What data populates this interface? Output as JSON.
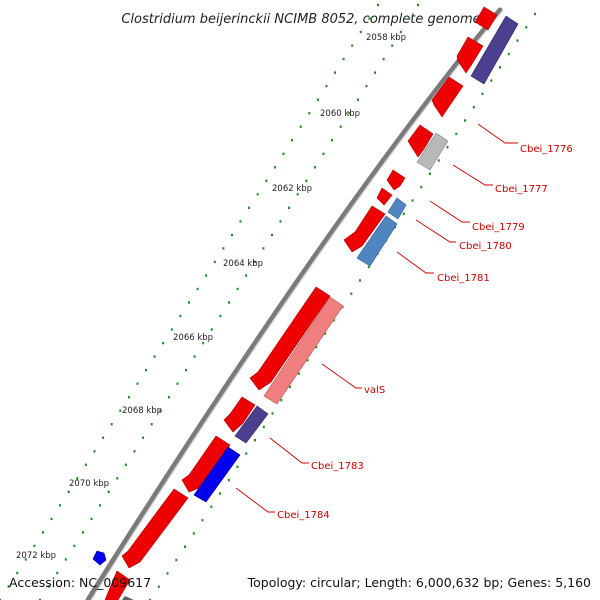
{
  "map": {
    "title": "Clostridium beijerinckii NCIMB 8052, complete genome",
    "accession": "Accession: NC_009617",
    "summary": "Topology: circular; Length: 6,000,632 bp; Genes: 5,160"
  },
  "ruler": {
    "labels": [
      "2058 kbp",
      "2060 kbp",
      "2062 kbp",
      "2064 kbp",
      "2066 kbp",
      "2068 kbp",
      "2070 kbp",
      "2072 kbp"
    ]
  },
  "genes": {
    "labels": [
      "Cbei_1776",
      "Cbei_1777",
      "Cbei_1779",
      "Cbei_1780",
      "Cbei_1781",
      "valS",
      "Cbei_1783",
      "Cbei_1784"
    ]
  },
  "colors": {
    "cds_red": "#ee0000",
    "purple": "#4b3f8f",
    "steel_blue": "#4f86c0",
    "gray": "#b8b8b8",
    "light_red": "#f08080",
    "blue": "#0000ee",
    "label_red": "#cc0000",
    "tick_green": "#228b22",
    "backbone": "#808080"
  }
}
